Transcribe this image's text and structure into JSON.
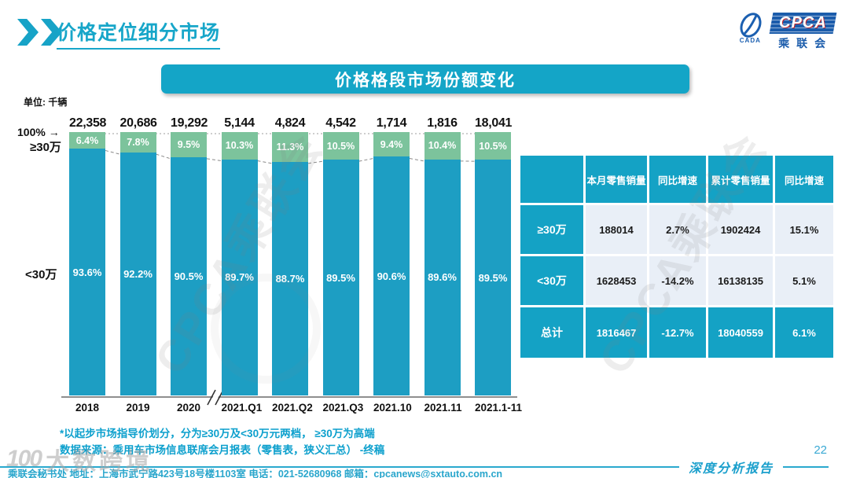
{
  "slide": {
    "title": "价格定位细分市场",
    "banner_title": "价格格段市场份额变化"
  },
  "logo": {
    "cpca": "CPCA",
    "org": "乘联会",
    "emblem_caption": "CADA"
  },
  "icons": {
    "right_arrow": "→"
  },
  "chart_data": {
    "type": "bar",
    "stacked": true,
    "unit_label": "单位: 千辆",
    "y_top_label": "100%",
    "upper_segment_label": "≥30万",
    "lower_segment_label": "<30万",
    "categories": [
      "2018",
      "2019",
      "2020",
      "2021.Q1",
      "2021.Q2",
      "2021.Q3",
      "2021.10",
      "2021.11",
      "2021.1-11"
    ],
    "totals_thousand_units": [
      "22,358",
      "20,686",
      "19,292",
      "5,144",
      "4,824",
      "4,542",
      "1,714",
      "1,816",
      "18,041"
    ],
    "series": [
      {
        "name": "≥30万",
        "color": "#7cc39c",
        "values_pct": [
          6.4,
          7.8,
          9.5,
          10.3,
          11.3,
          10.5,
          9.4,
          10.4,
          10.5
        ]
      },
      {
        "name": "<30万",
        "color": "#1d9ec3",
        "values_pct": [
          93.6,
          92.2,
          90.5,
          89.7,
          88.7,
          89.5,
          90.6,
          89.6,
          89.5
        ]
      }
    ],
    "ylim": [
      0,
      100
    ],
    "axis_break_after": "2020",
    "grid": false,
    "legend_position": "none"
  },
  "table": {
    "headers": [
      "",
      "本月零售销量",
      "同比增速",
      "累计零售销量",
      "同比增速"
    ],
    "rows": [
      {
        "label": "≥30万",
        "values": [
          "188014",
          "2.7%",
          "1902424",
          "15.1%"
        ],
        "highlight": false
      },
      {
        "label": "<30万",
        "values": [
          "1628453",
          "-14.2%",
          "16138135",
          "5.1%"
        ],
        "highlight": false
      },
      {
        "label": "总计",
        "values": [
          "1816467",
          "-12.7%",
          "18040559",
          "6.1%"
        ],
        "highlight": true
      }
    ]
  },
  "footnotes": {
    "note": "*以起步市场指导价划分，分为≥30万及<30万元两档， ≥30万为高端",
    "source": "数据来源：乘用车市场信息联席会月报表（零售表，狭义汇总） -终稿"
  },
  "footer": {
    "contact": "乘联会秘书处   地址：上海市武宁路423号18号楼1103室  电话：021-52680968   邮箱：cpcanews@sxtauto.com.cn",
    "report_label": "深度分析报告",
    "page_number": "22"
  },
  "watermarks": {
    "diagonal_text": "CPCA乘联会",
    "corner_logo": "100",
    "corner_text": "大数跨境"
  },
  "colors": {
    "teal": "#1d9ec3",
    "green": "#7cc39c",
    "banner": "#14a5c7",
    "table_header": "#14a2c5",
    "table_cell_bg": "#e9eff7",
    "accent_text": "#17a6c9"
  }
}
